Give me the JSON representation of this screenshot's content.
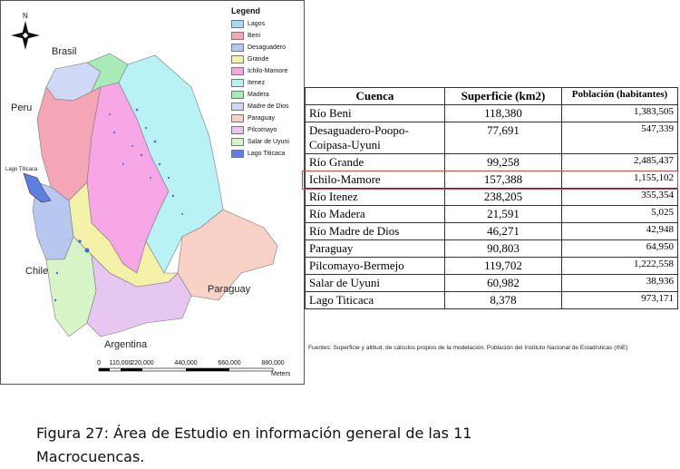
{
  "map": {
    "north_label": "N",
    "countries": {
      "brasil": "Brasil",
      "peru": "Peru",
      "chile": "Chile",
      "paraguay": "Paraguay",
      "argentina": "Argentina",
      "lago_titicaca": "Lago Titicaca"
    },
    "legend": {
      "title": "Legend",
      "items": [
        {
          "label": "Lagos",
          "color": "#a9d8f2"
        },
        {
          "label": "Beni",
          "color": "#f4a6b7"
        },
        {
          "label": "Desaguadero",
          "color": "#b7c7ef"
        },
        {
          "label": "Grande",
          "color": "#f4f2a8"
        },
        {
          "label": "Ichilo-Mamore",
          "color": "#f7a6e6"
        },
        {
          "label": "Itenez",
          "color": "#b8f2f4"
        },
        {
          "label": "Madera",
          "color": "#a8ebb8"
        },
        {
          "label": "Madre de Dios",
          "color": "#cfd8f4"
        },
        {
          "label": "Paraguay",
          "color": "#f8d2c6"
        },
        {
          "label": "Pilcomayo",
          "color": "#e5c7f2"
        },
        {
          "label": "Salar de Uyuni",
          "color": "#d7f4c7"
        },
        {
          "label": "Lago Titicaca",
          "color": "#5d7fe0"
        }
      ]
    },
    "scale": {
      "labels": [
        "0",
        "110,000",
        "220,000",
        "440,000",
        "660,000",
        "880,000"
      ],
      "units": "Meters"
    }
  },
  "table": {
    "headers": [
      "Cuenca",
      "Superficie (km2)",
      "Población (habitantes)"
    ],
    "rows": [
      {
        "cuenca": "Río Beni",
        "superficie": "118,380",
        "poblacion": "1,383,505"
      },
      {
        "cuenca": "Desaguadero-Poopo-Coipasa-Uyuni",
        "superficie": "77,691",
        "poblacion": "547,339"
      },
      {
        "cuenca": "Río Grande",
        "superficie": "99,258",
        "poblacion": "2,485,437"
      },
      {
        "cuenca": "Ichilo-Mamore",
        "superficie": "157,388",
        "poblacion": "1,155,102"
      },
      {
        "cuenca": "Río Itenez",
        "superficie": "238,205",
        "poblacion": "355,354"
      },
      {
        "cuenca": "Río Madera",
        "superficie": "21,591",
        "poblacion": "5,025"
      },
      {
        "cuenca": "Río Madre de Dios",
        "superficie": "46,271",
        "poblacion": "42,948"
      },
      {
        "cuenca": "Paraguay",
        "superficie": "90,803",
        "poblacion": "64,950"
      },
      {
        "cuenca": "Pilcomayo-Bermejo",
        "superficie": "119,702",
        "poblacion": "1,222,558"
      },
      {
        "cuenca": "Salar de Uyuni",
        "superficie": "60,982",
        "poblacion": "38,936"
      },
      {
        "cuenca": "Lago Titicaca",
        "superficie": "8,378",
        "poblacion": "973,171"
      }
    ],
    "highlighted_row": "Ichilo-Mamore",
    "highlight_color": "#c0504d"
  },
  "sources": "Fuentes: Superficie y altitud, de cálculos propios de la modelación. Población del Instituto Nacional de Estadísticas (INE)",
  "caption": {
    "lead": "Figura 27",
    "text": ": Área de Estudio en información general de las 11 Macrocuencas."
  }
}
